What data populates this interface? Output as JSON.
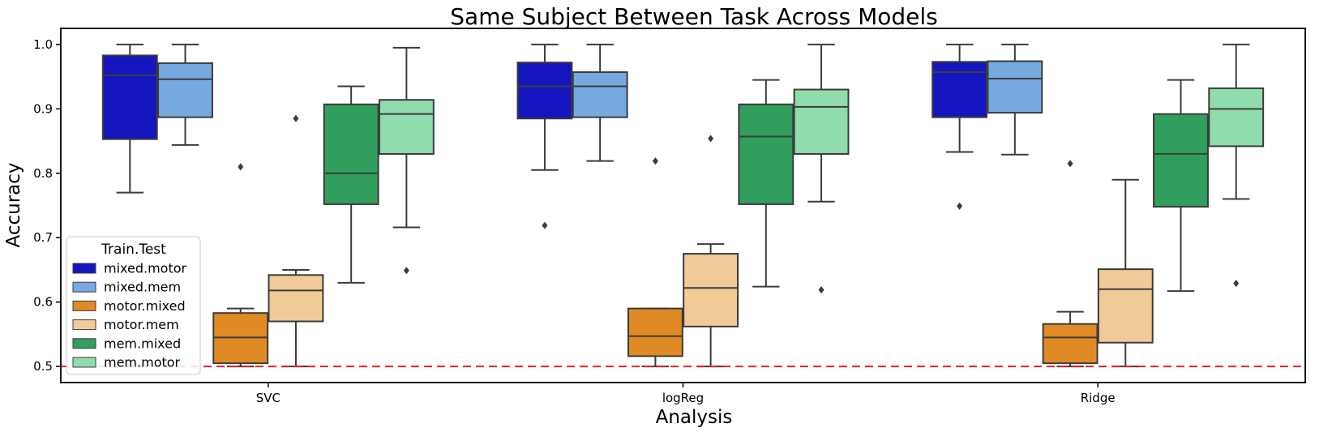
{
  "chart_data": {
    "type": "box",
    "title": "Same Subject Between Task Across Models",
    "xlabel": "Analysis",
    "ylabel": "Accuracy",
    "ylim": [
      0.475,
      1.025
    ],
    "yticks": [
      0.5,
      0.6,
      0.7,
      0.8,
      0.9,
      1.0
    ],
    "ytick_labels": [
      "0.5",
      "0.6",
      "0.7",
      "0.8",
      "0.9",
      "1.0"
    ],
    "categories": [
      "SVC",
      "logReg",
      "Ridge"
    ],
    "chance_line": {
      "y": 0.5,
      "color": "#e8202a",
      "style": "dashed"
    },
    "legend": {
      "title": "Train.Test",
      "placement": "lower-left"
    },
    "series": [
      {
        "name": "mixed.motor",
        "color": "#1515c0",
        "boxes": [
          {
            "whislo": 0.77,
            "q1": 0.853,
            "med": 0.952,
            "q3": 0.983,
            "whishi": 1.0,
            "fliers": []
          },
          {
            "whislo": 0.805,
            "q1": 0.885,
            "med": 0.935,
            "q3": 0.972,
            "whishi": 1.0,
            "fliers": [
              0.719
            ]
          },
          {
            "whislo": 0.833,
            "q1": 0.887,
            "med": 0.957,
            "q3": 0.973,
            "whishi": 1.0,
            "fliers": [
              0.749
            ]
          }
        ]
      },
      {
        "name": "mixed.mem",
        "color": "#78a8e0",
        "boxes": [
          {
            "whislo": 0.844,
            "q1": 0.887,
            "med": 0.946,
            "q3": 0.971,
            "whishi": 1.0,
            "fliers": []
          },
          {
            "whislo": 0.819,
            "q1": 0.887,
            "med": 0.935,
            "q3": 0.957,
            "whishi": 1.0,
            "fliers": []
          },
          {
            "whislo": 0.829,
            "q1": 0.894,
            "med": 0.947,
            "q3": 0.974,
            "whishi": 1.0,
            "fliers": []
          }
        ]
      },
      {
        "name": "motor.mixed",
        "color": "#e08a25",
        "boxes": [
          {
            "whislo": 0.5,
            "q1": 0.505,
            "med": 0.545,
            "q3": 0.583,
            "whishi": 0.59,
            "fliers": [
              0.81
            ]
          },
          {
            "whislo": 0.5,
            "q1": 0.516,
            "med": 0.547,
            "q3": 0.59,
            "whishi": 0.59,
            "fliers": [
              0.819
            ]
          },
          {
            "whislo": 0.5,
            "q1": 0.505,
            "med": 0.545,
            "q3": 0.566,
            "whishi": 0.585,
            "fliers": [
              0.815
            ]
          }
        ]
      },
      {
        "name": "motor.mem",
        "color": "#f0cb98",
        "boxes": [
          {
            "whislo": 0.5,
            "q1": 0.57,
            "med": 0.618,
            "q3": 0.642,
            "whishi": 0.65,
            "fliers": [
              0.885
            ]
          },
          {
            "whislo": 0.5,
            "q1": 0.562,
            "med": 0.622,
            "q3": 0.675,
            "whishi": 0.69,
            "fliers": [
              0.854
            ]
          },
          {
            "whislo": 0.5,
            "q1": 0.537,
            "med": 0.62,
            "q3": 0.651,
            "whishi": 0.79,
            "fliers": []
          }
        ]
      },
      {
        "name": "mem.mixed",
        "color": "#309e5c",
        "boxes": [
          {
            "whislo": 0.63,
            "q1": 0.752,
            "med": 0.8,
            "q3": 0.907,
            "whishi": 0.935,
            "fliers": []
          },
          {
            "whislo": 0.624,
            "q1": 0.752,
            "med": 0.857,
            "q3": 0.907,
            "whishi": 0.945,
            "fliers": []
          },
          {
            "whislo": 0.617,
            "q1": 0.748,
            "med": 0.83,
            "q3": 0.892,
            "whishi": 0.945,
            "fliers": []
          }
        ]
      },
      {
        "name": "mem.motor",
        "color": "#90dcac",
        "boxes": [
          {
            "whislo": 0.716,
            "q1": 0.83,
            "med": 0.892,
            "q3": 0.914,
            "whishi": 0.995,
            "fliers": [
              0.649
            ]
          },
          {
            "whislo": 0.756,
            "q1": 0.83,
            "med": 0.903,
            "q3": 0.93,
            "whishi": 1.0,
            "fliers": [
              0.619
            ]
          },
          {
            "whislo": 0.76,
            "q1": 0.842,
            "med": 0.9,
            "q3": 0.932,
            "whishi": 1.0,
            "fliers": [
              0.629
            ]
          }
        ]
      }
    ]
  }
}
